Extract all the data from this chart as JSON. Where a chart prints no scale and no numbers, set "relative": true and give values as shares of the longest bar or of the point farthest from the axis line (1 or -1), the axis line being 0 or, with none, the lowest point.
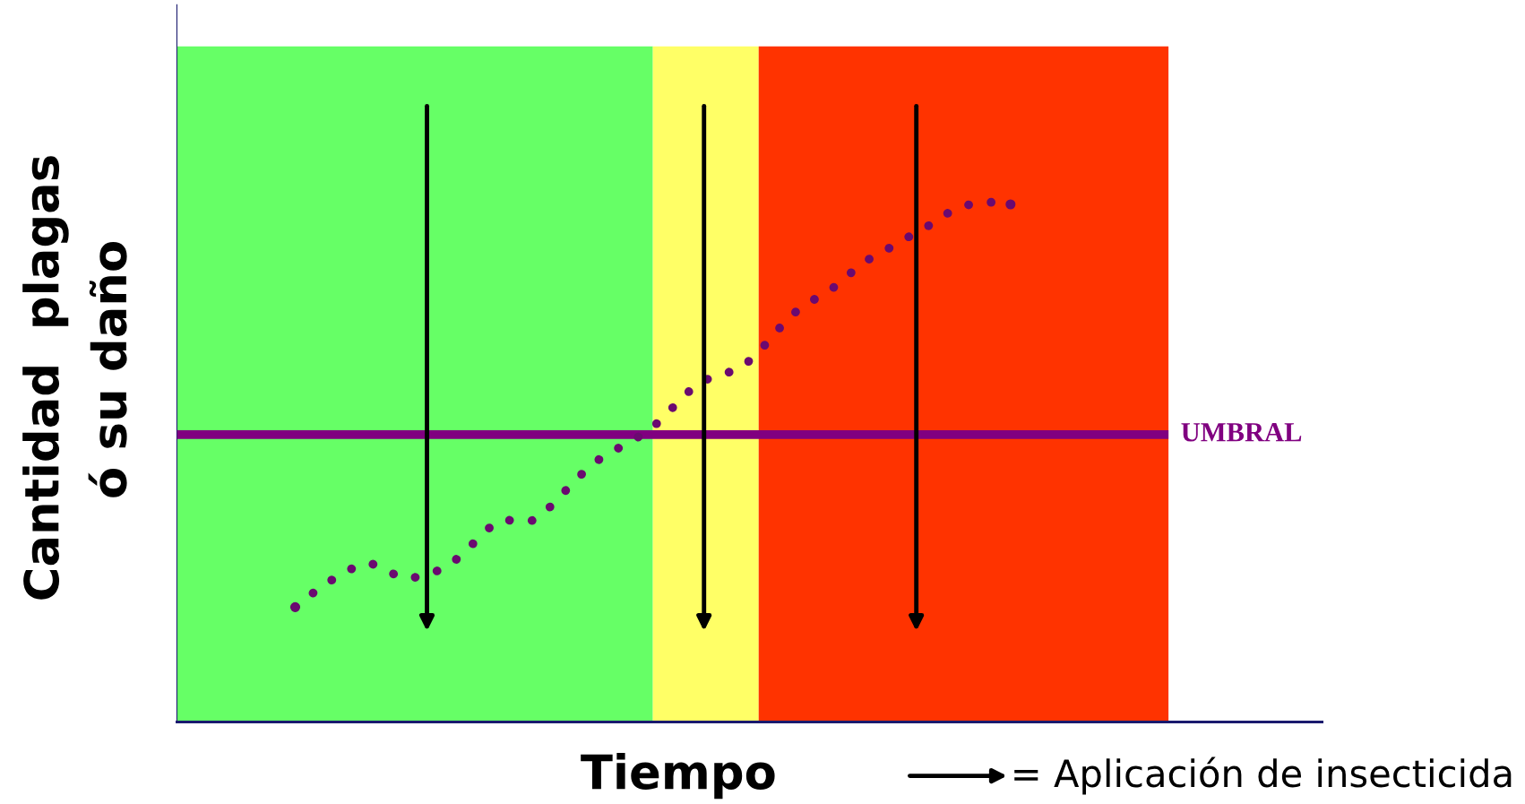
{
  "chart_data": {
    "type": "line",
    "relative": true,
    "xlabel": "Tiempo",
    "ylabel": "Cantidad  plagas\n ó su daño",
    "categories": [
      null,
      null,
      null,
      null,
      null,
      null,
      null,
      null,
      null,
      null,
      null,
      null,
      null,
      null,
      null,
      null,
      null,
      null,
      null,
      null,
      null,
      null,
      null,
      null,
      null,
      null,
      null,
      null,
      null,
      null,
      null,
      null,
      null,
      null,
      null,
      null,
      null,
      null,
      null,
      null,
      null,
      null,
      null,
      null,
      null,
      null,
      null,
      null,
      null
    ],
    "series": [
      {
        "color": "#6a0a70",
        "values": [
          0.221,
          0.244,
          0.265,
          0.283,
          0.298,
          0.306,
          0.295,
          0.278,
          0.278,
          0.285,
          0.296,
          0.317,
          0.345,
          0.373,
          0.39,
          0.385,
          0.388,
          0.411,
          0.441,
          0.471,
          0.497,
          0.518,
          0.531,
          0.548,
          0.567,
          0.595,
          0.625,
          0.651,
          0.664,
          0.672,
          0.683,
          0.709,
          0.741,
          0.775,
          0.799,
          0.816,
          0.833,
          0.857,
          0.882,
          0.899,
          0.914,
          0.931,
          0.946,
          0.964,
          0.983,
          0.994,
          1.0,
          1.0,
          0.996
        ]
      }
    ],
    "line_style": "dotted",
    "legend": false,
    "ref_lines": [
      {
        "axis": "y",
        "value": 0.553,
        "label": "UMBRAL",
        "color": "#800080"
      }
    ],
    "annotations": [
      "= Aplicación de insecticida"
    ]
  }
}
